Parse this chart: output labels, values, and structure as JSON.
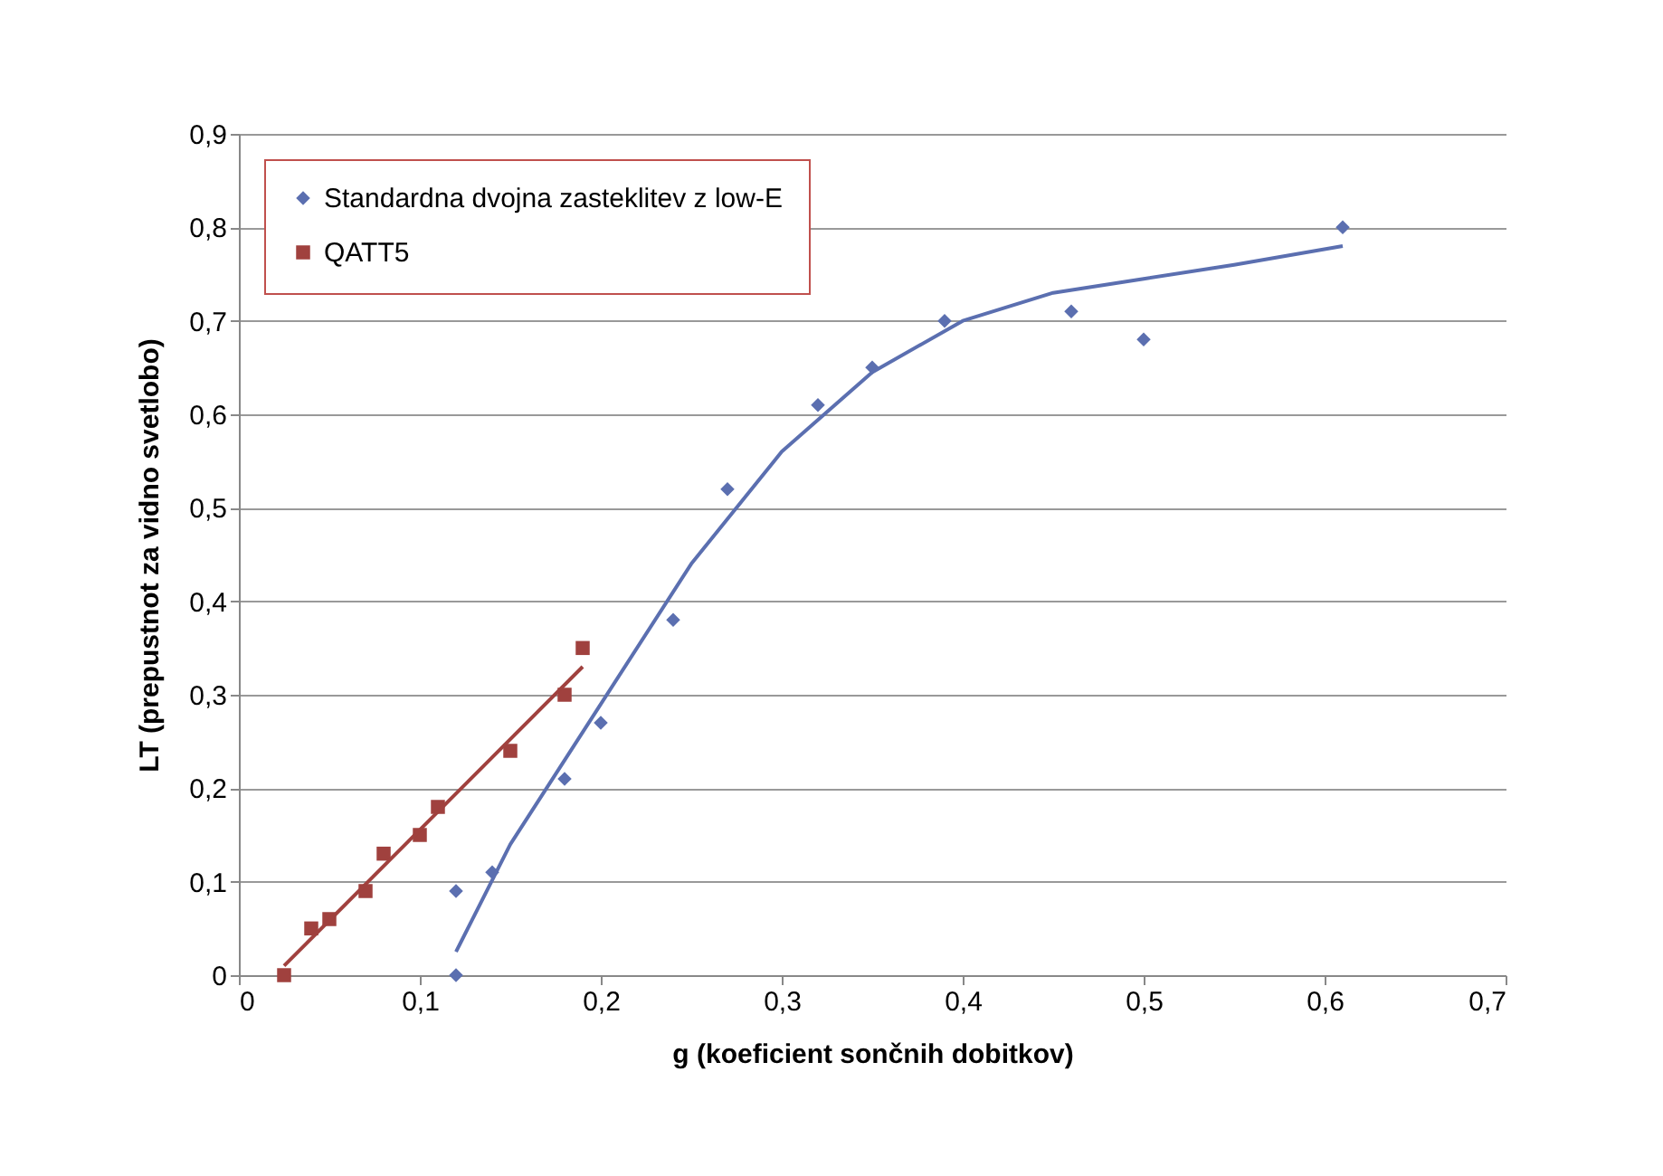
{
  "chart_data": {
    "type": "scatter",
    "xlabel": "g (koeficient sončnih dobitkov)",
    "ylabel": "LT (prepustnot za vidno svetlobo)",
    "xlim": [
      0,
      0.7
    ],
    "ylim": [
      0,
      0.9
    ],
    "xticks": [
      0,
      {
        "value": 0.1,
        "label": "0,1"
      },
      {
        "value": 0.2,
        "label": "0,2"
      },
      {
        "value": 0.3,
        "label": "0,3"
      },
      {
        "value": 0.4,
        "label": "0,4"
      },
      {
        "value": 0.5,
        "label": "0,5"
      },
      {
        "value": 0.6,
        "label": "0,6"
      },
      {
        "value": 0.7,
        "label": "0,7"
      }
    ],
    "yticks": [
      0,
      {
        "value": 0.1,
        "label": "0,1"
      },
      {
        "value": 0.2,
        "label": "0,2"
      },
      {
        "value": 0.3,
        "label": "0,3"
      },
      {
        "value": 0.4,
        "label": "0,4"
      },
      {
        "value": 0.5,
        "label": "0,5"
      },
      {
        "value": 0.6,
        "label": "0,6"
      },
      {
        "value": 0.7,
        "label": "0,7"
      },
      {
        "value": 0.8,
        "label": "0,8"
      },
      {
        "value": 0.9,
        "label": "0,9"
      }
    ],
    "grid": "y",
    "legend": "top left",
    "series": [
      {
        "name": "Standardna dvojna zasteklitev z low-E",
        "type": "scatter",
        "marker": "diamond",
        "color": "#5b6fb0",
        "x": [
          0.12,
          0.12,
          0.14,
          0.18,
          0.2,
          0.24,
          0.27,
          0.32,
          0.35,
          0.39,
          0.46,
          0.5,
          0.61
        ],
        "values": [
          0.09,
          0,
          0.11,
          0.21,
          0.27,
          0.38,
          0.52,
          0.61,
          0.65,
          0.7,
          0.71,
          0.68,
          0.8
        ]
      },
      {
        "name": "QATT5",
        "type": "scatter",
        "marker": "square",
        "color": "#a0413e",
        "x": [
          0.025,
          0.04,
          0.05,
          0.07,
          0.08,
          0.1,
          0.11,
          0.15,
          0.18,
          0.19
        ],
        "values": [
          0,
          0.05,
          0.06,
          0.09,
          0.13,
          0.15,
          0.18,
          0.24,
          0.3,
          0.35
        ]
      },
      {
        "type": "line",
        "color": "#5b6fb0",
        "x": [
          0.12,
          0.15,
          0.2,
          0.25,
          0.3,
          0.35,
          0.4,
          0.45,
          0.5,
          0.55,
          0.61
        ],
        "values": [
          0.025,
          0.14,
          0.29,
          0.44,
          0.56,
          0.645,
          0.7,
          0.73,
          0.745,
          0.76,
          0.78
        ]
      },
      {
        "type": "line",
        "color": "#a0413e",
        "x": [
          0.025,
          0.19
        ],
        "values": [
          0.01,
          0.33
        ]
      }
    ]
  }
}
